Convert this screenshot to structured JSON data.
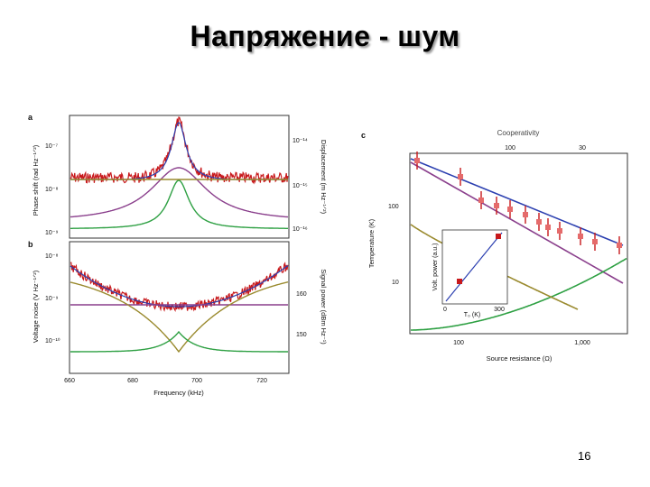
{
  "slide": {
    "title": "Напряжение - шум",
    "page_number": "16"
  },
  "colors": {
    "data_red": "#c8191c",
    "data_red_light": "#e56b6b",
    "blue": "#2b3fb0",
    "purple": "#8a3f8c",
    "green": "#2ea043",
    "olive": "#9a8a2e",
    "frame": "#333333"
  },
  "figure": {
    "panel_a": {
      "letter": "a",
      "left_ylabel": "Phase shift (rad Hz⁻¹ᐟ²)",
      "right_ylabel": "Displacement (m Hz⁻¹ᐟ²)",
      "left_ticks": [
        "10⁻⁷",
        "10⁻⁸",
        "10⁻⁹"
      ],
      "right_ticks": [
        "10⁻¹⁴",
        "10⁻¹⁵",
        "10⁻¹⁶"
      ]
    },
    "panel_b": {
      "letter": "b",
      "left_ylabel": "Voltage noise (V Hz⁻¹ᐟ²)",
      "right_ylabel": "Signal power (dBm Hz⁻¹)",
      "left_ticks": [
        "10⁻⁸",
        "10⁻⁹",
        "10⁻¹⁰"
      ],
      "right_ticks": [
        "160",
        "150"
      ],
      "x_ticks": [
        "660",
        "680",
        "700",
        "720"
      ],
      "xlabel": "Frequency (kHz)"
    },
    "panel_c": {
      "letter": "c",
      "top_label": "Cooperativity",
      "top_ticks": [
        "100",
        "30"
      ],
      "ylabel": "Temperature (K)",
      "y_ticks": [
        "100",
        "10"
      ],
      "xlabel": "Source resistance (Ω)",
      "x_ticks": [
        "100",
        "1,000"
      ],
      "inset": {
        "ylabel": "Volt. power (a.u.)",
        "xlabel": "T₀ (K)",
        "x_ticks": [
          "0",
          "300"
        ]
      }
    }
  }
}
